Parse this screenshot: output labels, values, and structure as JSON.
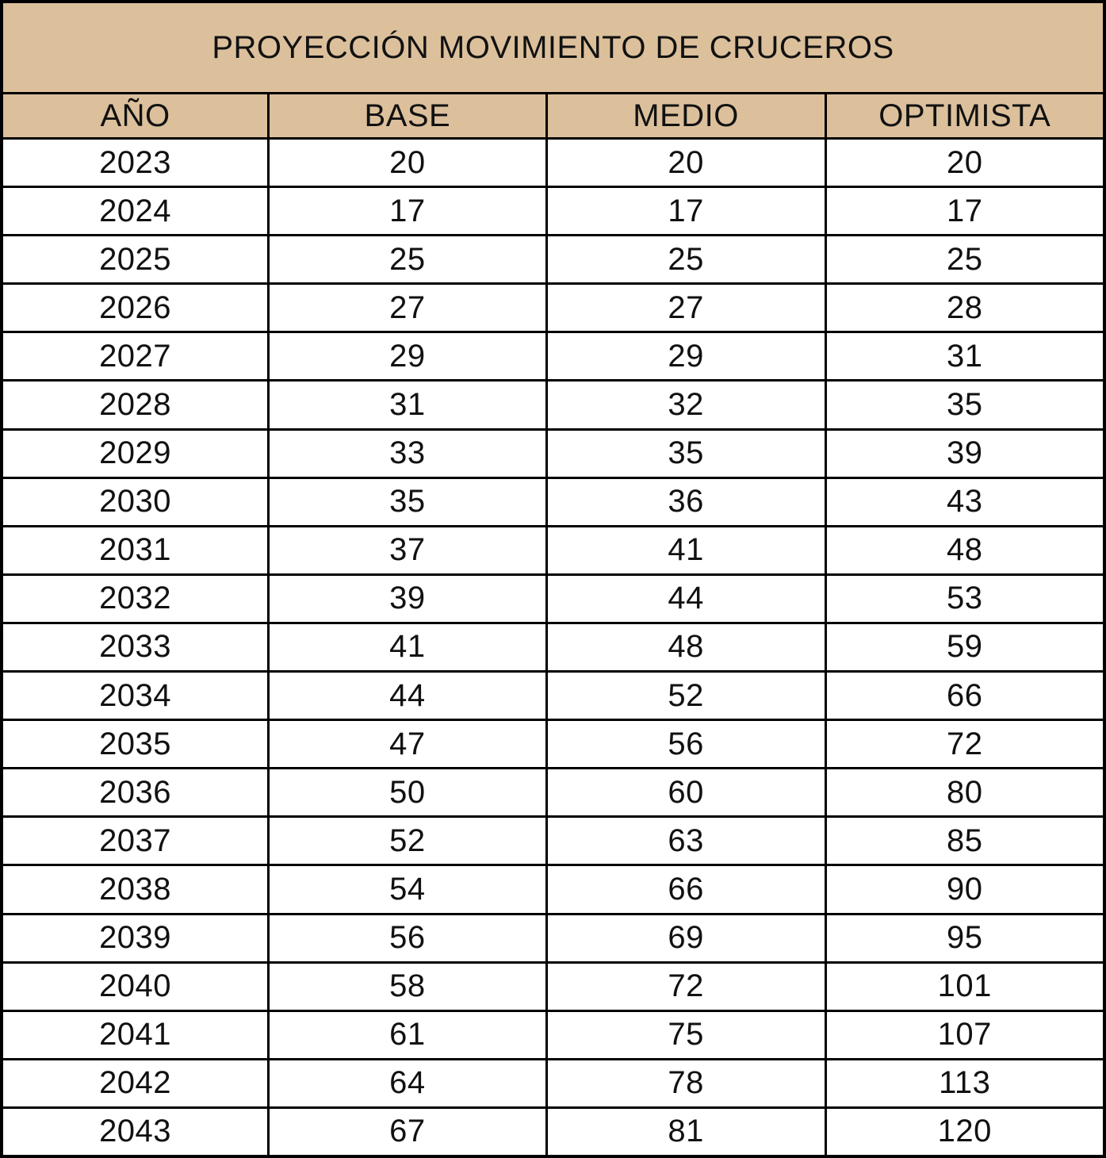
{
  "colors": {
    "header_bg": "#dcc09c",
    "border": "#000000",
    "text": "#111111",
    "row_bg": "#ffffff"
  },
  "chart_data": {
    "type": "table",
    "title": "PROYECCIÓN MOVIMIENTO DE CRUCEROS",
    "columns": [
      "AÑO",
      "BASE",
      "MEDIO",
      "OPTIMISTA"
    ],
    "rows": [
      [
        "2023",
        "20",
        "20",
        "20"
      ],
      [
        "2024",
        "17",
        "17",
        "17"
      ],
      [
        "2025",
        "25",
        "25",
        "25"
      ],
      [
        "2026",
        "27",
        "27",
        "28"
      ],
      [
        "2027",
        "29",
        "29",
        "31"
      ],
      [
        "2028",
        "31",
        "32",
        "35"
      ],
      [
        "2029",
        "33",
        "35",
        "39"
      ],
      [
        "2030",
        "35",
        "36",
        "43"
      ],
      [
        "2031",
        "37",
        "41",
        "48"
      ],
      [
        "2032",
        "39",
        "44",
        "53"
      ],
      [
        "2033",
        "41",
        "48",
        "59"
      ],
      [
        "2034",
        "44",
        "52",
        "66"
      ],
      [
        "2035",
        "47",
        "56",
        "72"
      ],
      [
        "2036",
        "50",
        "60",
        "80"
      ],
      [
        "2037",
        "52",
        "63",
        "85"
      ],
      [
        "2038",
        "54",
        "66",
        "90"
      ],
      [
        "2039",
        "56",
        "69",
        "95"
      ],
      [
        "2040",
        "58",
        "72",
        "101"
      ],
      [
        "2041",
        "61",
        "75",
        "107"
      ],
      [
        "2042",
        "64",
        "78",
        "113"
      ],
      [
        "2043",
        "67",
        "81",
        "120"
      ]
    ]
  }
}
